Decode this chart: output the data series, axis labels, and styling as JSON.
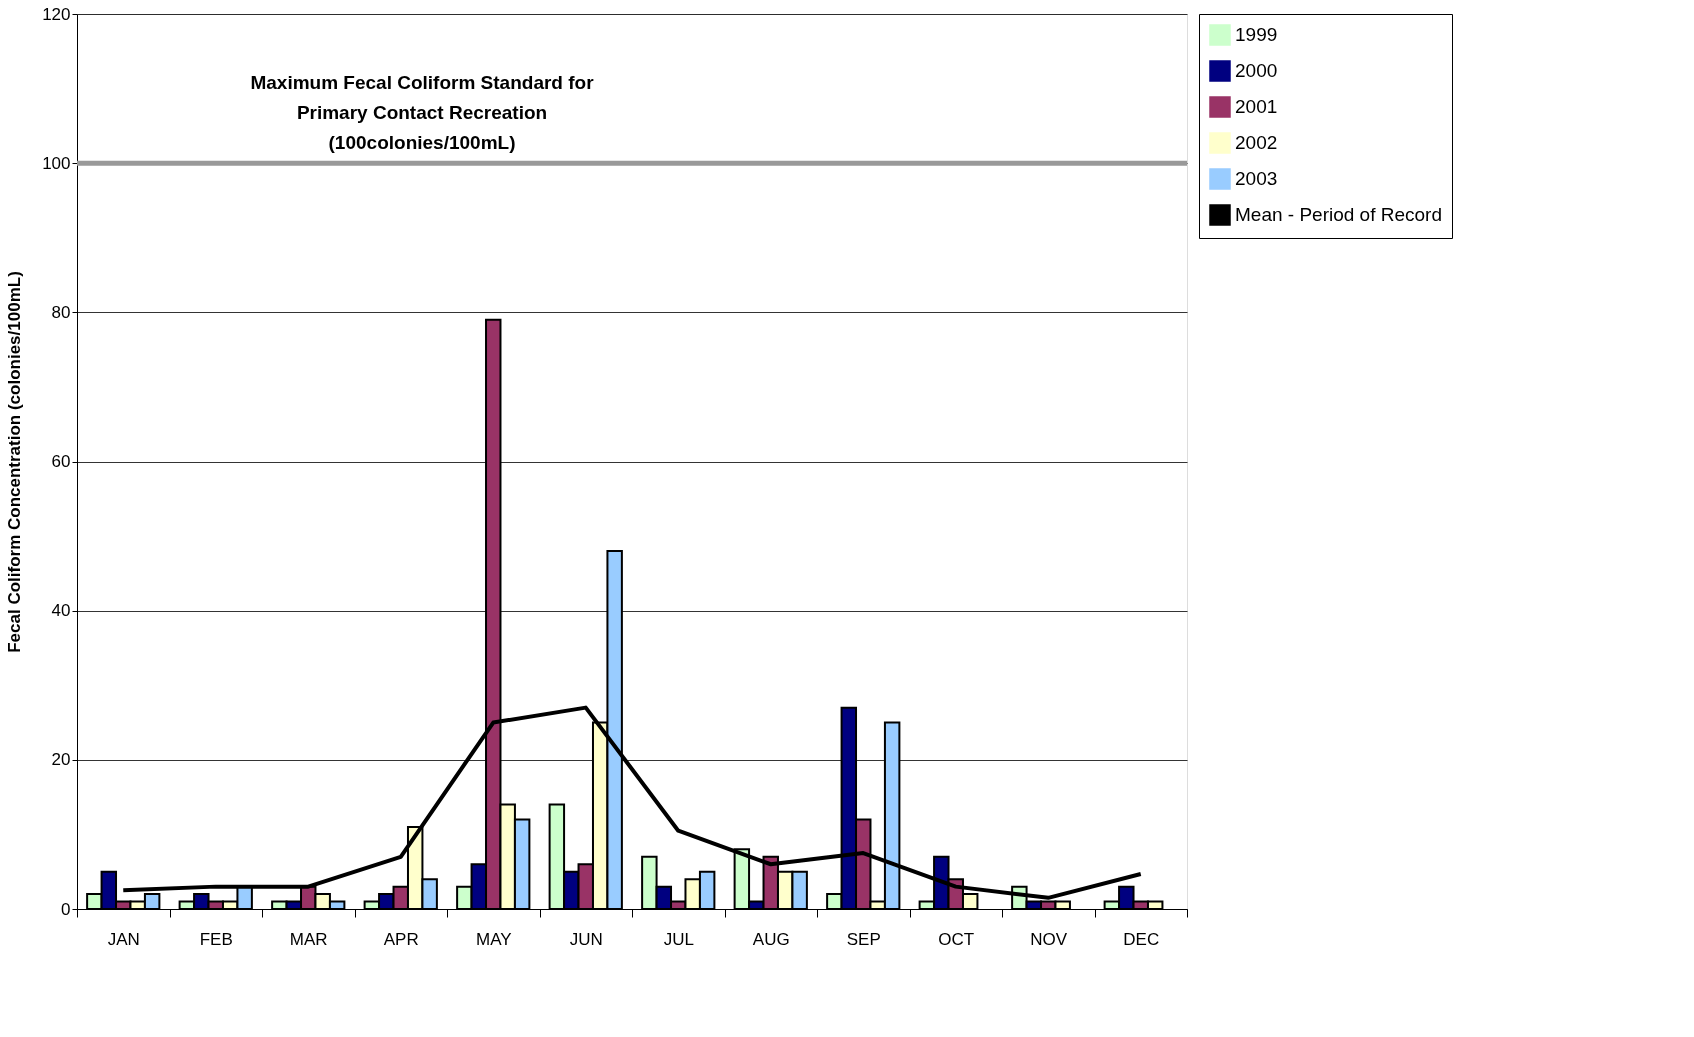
{
  "chart_data": {
    "type": "bar",
    "ylabel": "Fecal Coliform Concentration (colonies/100mL)",
    "categories": [
      "JAN",
      "FEB",
      "MAR",
      "APR",
      "MAY",
      "JUN",
      "JUL",
      "AUG",
      "SEP",
      "OCT",
      "NOV",
      "DEC"
    ],
    "series": [
      {
        "name": "1999",
        "color": "#ccffcc",
        "values": [
          2,
          1,
          1,
          1,
          3,
          14,
          7,
          8,
          2,
          1,
          3,
          1
        ]
      },
      {
        "name": "2000",
        "color": "#000080",
        "values": [
          5,
          2,
          1,
          2,
          6,
          5,
          3,
          1,
          27,
          7,
          1,
          3
        ]
      },
      {
        "name": "2001",
        "color": "#993366",
        "values": [
          1,
          1,
          3,
          3,
          79,
          6,
          1,
          7,
          12,
          4,
          1,
          1
        ]
      },
      {
        "name": "2002",
        "color": "#ffffcc",
        "values": [
          1,
          1,
          2,
          11,
          14,
          25,
          4,
          5,
          1,
          2,
          1,
          1
        ]
      },
      {
        "name": "2003",
        "color": "#99ccff",
        "values": [
          2,
          3,
          1,
          4,
          12,
          48,
          5,
          5,
          25,
          null,
          null,
          null
        ]
      },
      {
        "name": "Mean - Period of Record",
        "type": "line",
        "color": "#000000",
        "values": [
          2.5,
          3,
          3,
          7,
          25,
          27,
          10.5,
          6,
          7.5,
          3,
          1.5,
          4.7
        ]
      }
    ],
    "ylim": [
      0,
      120
    ],
    "yticks": [
      0,
      20,
      40,
      60,
      80,
      100,
      120
    ],
    "grid": "y",
    "legend": "right",
    "ref_lines": [
      {
        "axis": "y",
        "value": 100,
        "label": "Maximum Fecal Coliform Standard for\nPrimary Contact Recreation\n(100colonies/100mL)",
        "color": "#999999"
      }
    ]
  }
}
